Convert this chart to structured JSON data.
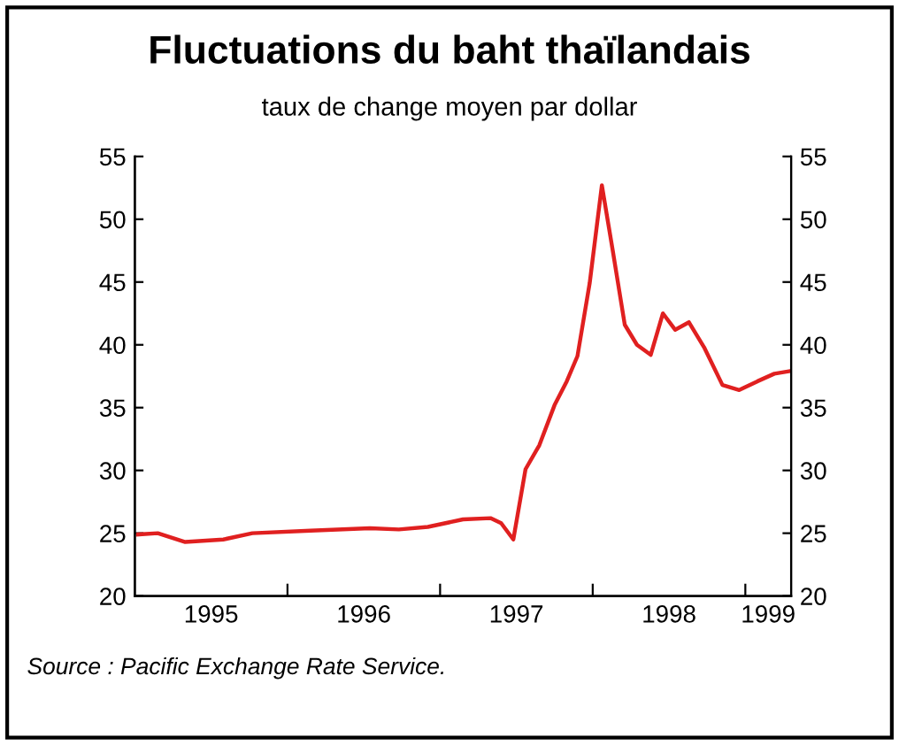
{
  "chart_data": {
    "type": "line",
    "title": "Fluctuations du baht thaïlandais",
    "subtitle": "taux de change moyen par dollar",
    "annotations": [
      "Source : Pacific Exchange Rate Service."
    ],
    "x": [
      1995.02,
      1995.15,
      1995.33,
      1995.58,
      1995.77,
      1996.15,
      1996.54,
      1996.73,
      1996.92,
      1997.15,
      1997.33,
      1997.4,
      1997.48,
      1997.56,
      1997.65,
      1997.75,
      1997.83,
      1997.9,
      1997.98,
      1998.06,
      1998.13,
      1998.21,
      1998.29,
      1998.38,
      1998.46,
      1998.54,
      1998.63,
      1998.73,
      1998.85,
      1998.96,
      1999.08,
      1999.19,
      1999.29
    ],
    "series": [
      {
        "color": "#e02020",
        "values": [
          24.9,
          25.0,
          24.3,
          24.5,
          25.0,
          25.2,
          25.4,
          25.3,
          25.5,
          26.1,
          26.2,
          25.8,
          24.5,
          30.1,
          32.0,
          35.2,
          37.1,
          39.1,
          44.9,
          52.7,
          47.6,
          41.6,
          40.0,
          39.2,
          42.5,
          41.2,
          41.8,
          39.8,
          36.8,
          36.4,
          37.1,
          37.7,
          37.9
        ]
      }
    ],
    "xlim": [
      1995,
      1999.3
    ],
    "xticks": [
      {
        "value": 1995.5,
        "label": "1995"
      },
      {
        "value": 1996,
        "label": null
      },
      {
        "value": 1996.5,
        "label": "1996"
      },
      {
        "value": 1997,
        "label": null
      },
      {
        "value": 1997.5,
        "label": "1997"
      },
      {
        "value": 1998,
        "label": null
      },
      {
        "value": 1998.5,
        "label": "1998"
      },
      {
        "value": 1999,
        "label": null
      },
      {
        "value": 1999.15,
        "label": "1999"
      }
    ],
    "ylim": [
      20,
      55
    ],
    "yticks": [
      20,
      25,
      30,
      35,
      40,
      45,
      50,
      55
    ],
    "y2lim": [
      20,
      55
    ],
    "y2ticks": [
      20,
      25,
      30,
      35,
      40,
      45,
      50,
      55
    ],
    "grid": false,
    "legend": false,
    "marker": "none",
    "line_style": "solid"
  }
}
